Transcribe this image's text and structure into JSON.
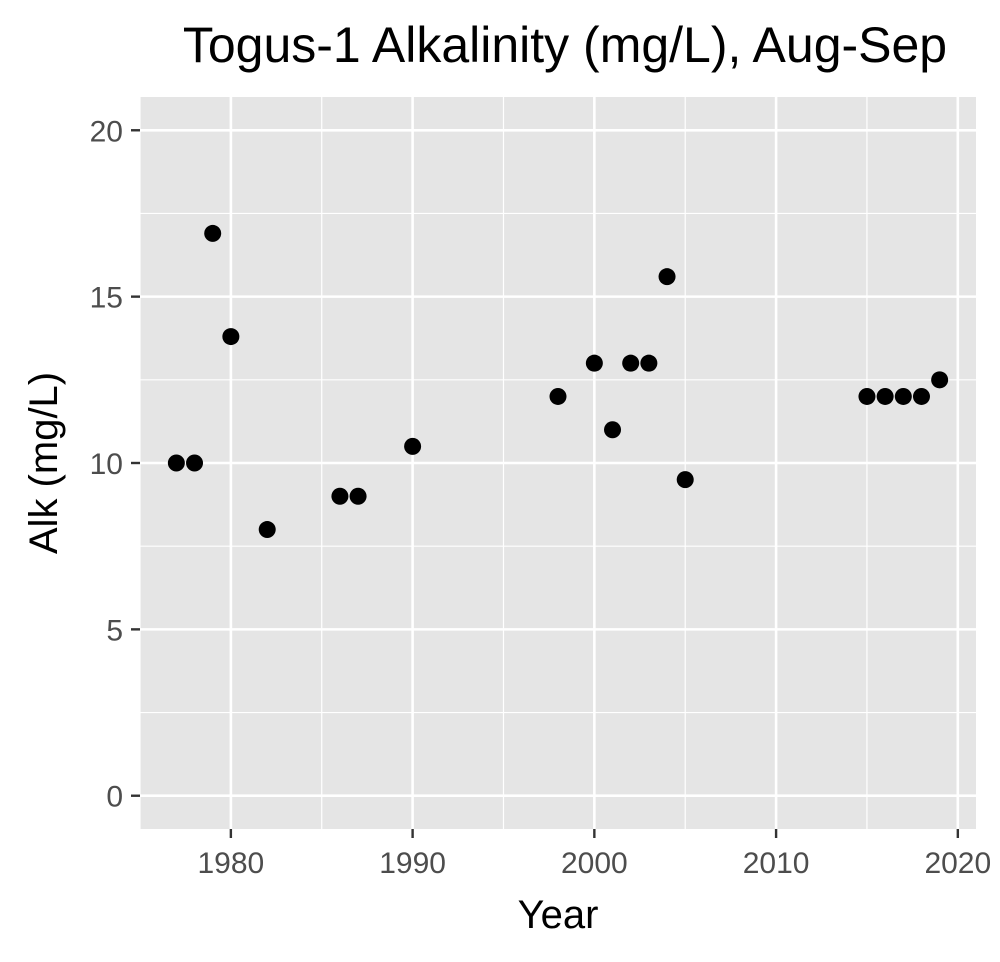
{
  "chart_data": {
    "type": "scatter",
    "title": "Togus-1 Alkalinity (mg/L), Aug-Sep",
    "xlabel": "Year",
    "ylabel": "Alk (mg/L)",
    "xlim": [
      1975,
      2021
    ],
    "ylim": [
      -1,
      21
    ],
    "x_ticks": [
      1980,
      1990,
      2000,
      2010,
      2020
    ],
    "y_ticks": [
      0,
      5,
      10,
      15,
      20
    ],
    "x_tick_labels": [
      "1980",
      "1990",
      "2000",
      "2010",
      "2020"
    ],
    "y_tick_labels": [
      "0",
      "5",
      "10",
      "15",
      "20"
    ],
    "grid": true,
    "legend": "none",
    "colors": {
      "panel": "#e5e5e5",
      "grid": "#ffffff",
      "point": "#000000",
      "tick": "#333333"
    },
    "points": [
      {
        "x": 1977,
        "y": 10
      },
      {
        "x": 1978,
        "y": 10
      },
      {
        "x": 1979,
        "y": 16.9
      },
      {
        "x": 1980,
        "y": 13.8
      },
      {
        "x": 1982,
        "y": 8
      },
      {
        "x": 1986,
        "y": 9
      },
      {
        "x": 1987,
        "y": 9
      },
      {
        "x": 1990,
        "y": 10.5
      },
      {
        "x": 1998,
        "y": 12
      },
      {
        "x": 2000,
        "y": 13
      },
      {
        "x": 2001,
        "y": 11
      },
      {
        "x": 2002,
        "y": 13
      },
      {
        "x": 2003,
        "y": 13
      },
      {
        "x": 2004,
        "y": 15.6
      },
      {
        "x": 2005,
        "y": 9.5
      },
      {
        "x": 2015,
        "y": 12
      },
      {
        "x": 2016,
        "y": 12
      },
      {
        "x": 2017,
        "y": 12
      },
      {
        "x": 2018,
        "y": 12
      },
      {
        "x": 2019,
        "y": 12.5
      }
    ]
  }
}
